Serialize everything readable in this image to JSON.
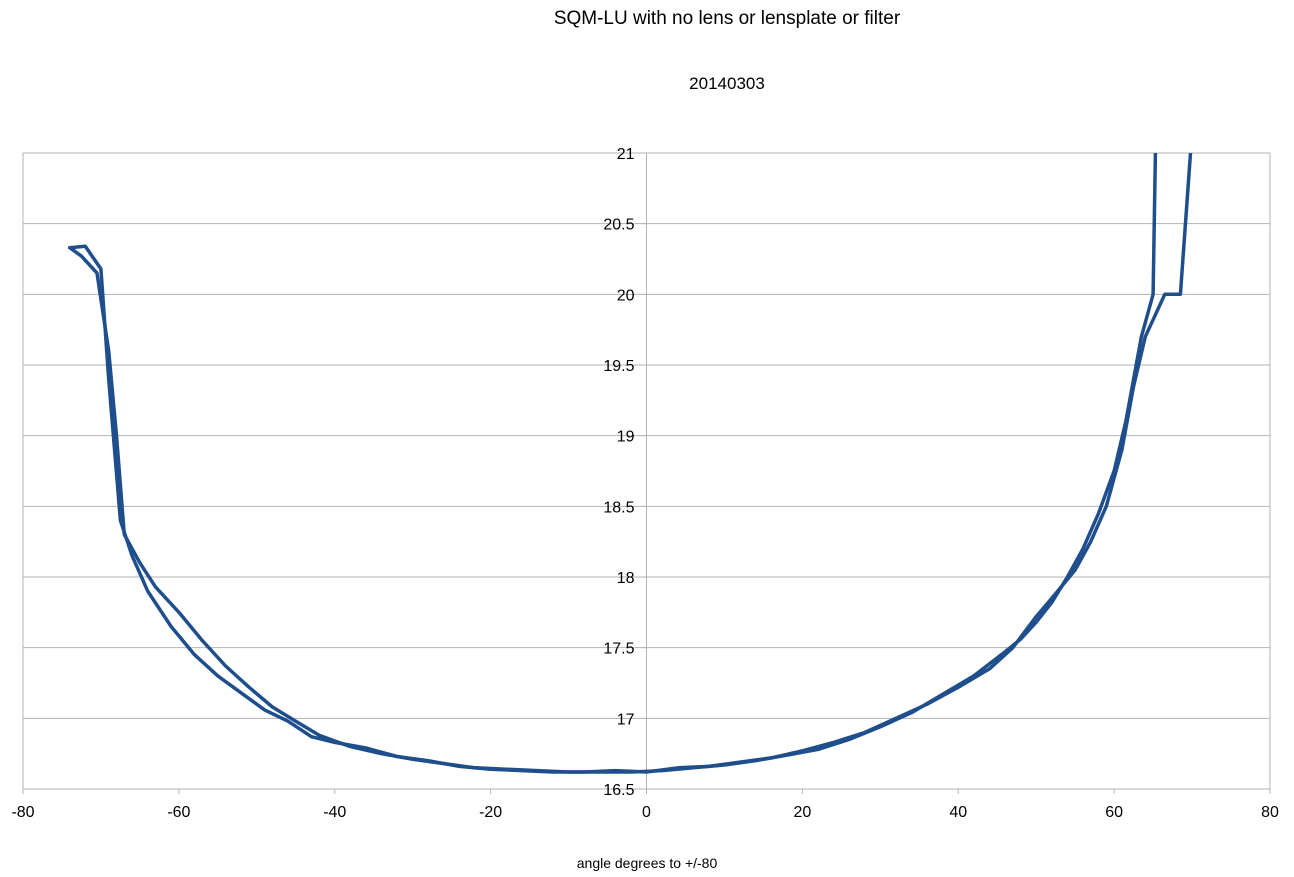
{
  "chart_data": {
    "type": "line",
    "title": "SQM-LU with no lens or lensplate or filter",
    "subtitle": "20140303",
    "xlabel": "angle degrees to +/-80",
    "ylabel": "",
    "xlim": [
      -80,
      80
    ],
    "ylim": [
      16.5,
      21
    ],
    "xticks": [
      -80,
      -60,
      -40,
      -20,
      0,
      20,
      40,
      60,
      80
    ],
    "yticks": [
      16.5,
      17,
      17.5,
      18,
      18.5,
      19,
      19.5,
      20,
      20.5,
      21
    ],
    "xtick_labels": [
      "-80",
      "-60",
      "-40",
      "-20",
      "0",
      "20",
      "40",
      "60",
      "80"
    ],
    "ytick_labels": [
      "16.5",
      "17",
      "17.5",
      "18",
      "18.5",
      "19",
      "19.5",
      "20",
      "20.5",
      "21"
    ],
    "grid": true,
    "line_color": "#1f4e8c",
    "series": [
      {
        "values": [
          [
            -74,
            20.33
          ],
          [
            -72.5,
            20.27
          ],
          [
            -70.5,
            20.15
          ],
          [
            -69,
            19.6
          ],
          [
            -68,
            19.0
          ],
          [
            -67,
            18.3
          ],
          [
            -65,
            18.1
          ],
          [
            -63,
            17.93
          ],
          [
            -60,
            17.75
          ],
          [
            -57,
            17.55
          ],
          [
            -54,
            17.37
          ],
          [
            -51,
            17.22
          ],
          [
            -48,
            17.08
          ],
          [
            -45,
            16.98
          ],
          [
            -42,
            16.88
          ],
          [
            -38,
            16.8
          ],
          [
            -34,
            16.75
          ],
          [
            -30,
            16.71
          ],
          [
            -26,
            16.68
          ],
          [
            -22,
            16.65
          ],
          [
            -18,
            16.64
          ],
          [
            -14,
            16.63
          ],
          [
            -10,
            16.62
          ],
          [
            -6,
            16.62
          ],
          [
            -2,
            16.62
          ],
          [
            2,
            16.63
          ],
          [
            6,
            16.65
          ],
          [
            10,
            16.67
          ],
          [
            14,
            16.7
          ],
          [
            18,
            16.74
          ],
          [
            22,
            16.78
          ],
          [
            26,
            16.85
          ],
          [
            30,
            16.94
          ],
          [
            34,
            17.04
          ],
          [
            38,
            17.17
          ],
          [
            42,
            17.3
          ],
          [
            46,
            17.47
          ],
          [
            48,
            17.56
          ],
          [
            50,
            17.68
          ],
          [
            52,
            17.82
          ],
          [
            54,
            18.0
          ],
          [
            56,
            18.2
          ],
          [
            58,
            18.45
          ],
          [
            60,
            18.75
          ],
          [
            61.5,
            19.1
          ],
          [
            62.5,
            19.4
          ],
          [
            63.5,
            19.7
          ],
          [
            65,
            20.0
          ],
          [
            65.3,
            21
          ]
        ]
      },
      {
        "values": [
          [
            -74,
            20.33
          ],
          [
            -72,
            20.34
          ],
          [
            -70,
            20.18
          ],
          [
            -69,
            19.4
          ],
          [
            -67.5,
            18.4
          ],
          [
            -66,
            18.15
          ],
          [
            -64,
            17.9
          ],
          [
            -61,
            17.65
          ],
          [
            -58,
            17.45
          ],
          [
            -55,
            17.3
          ],
          [
            -52,
            17.18
          ],
          [
            -49,
            17.06
          ],
          [
            -46,
            16.98
          ],
          [
            -43,
            16.87
          ],
          [
            -40,
            16.83
          ],
          [
            -36,
            16.79
          ],
          [
            -32,
            16.73
          ],
          [
            -28,
            16.7
          ],
          [
            -24,
            16.66
          ],
          [
            -20,
            16.64
          ],
          [
            -16,
            16.63
          ],
          [
            -12,
            16.62
          ],
          [
            -8,
            16.62
          ],
          [
            -4,
            16.63
          ],
          [
            0,
            16.62
          ],
          [
            4,
            16.65
          ],
          [
            8,
            16.66
          ],
          [
            12,
            16.69
          ],
          [
            16,
            16.72
          ],
          [
            20,
            16.77
          ],
          [
            24,
            16.83
          ],
          [
            28,
            16.9
          ],
          [
            32,
            17.0
          ],
          [
            36,
            17.1
          ],
          [
            40,
            17.22
          ],
          [
            44,
            17.35
          ],
          [
            47,
            17.5
          ],
          [
            50,
            17.72
          ],
          [
            52,
            17.85
          ],
          [
            55,
            18.05
          ],
          [
            57,
            18.25
          ],
          [
            59,
            18.5
          ],
          [
            61,
            18.9
          ],
          [
            62.5,
            19.35
          ],
          [
            64,
            19.7
          ],
          [
            66.5,
            20.0
          ],
          [
            68.5,
            20.0
          ],
          [
            69.8,
            21
          ]
        ]
      }
    ]
  }
}
